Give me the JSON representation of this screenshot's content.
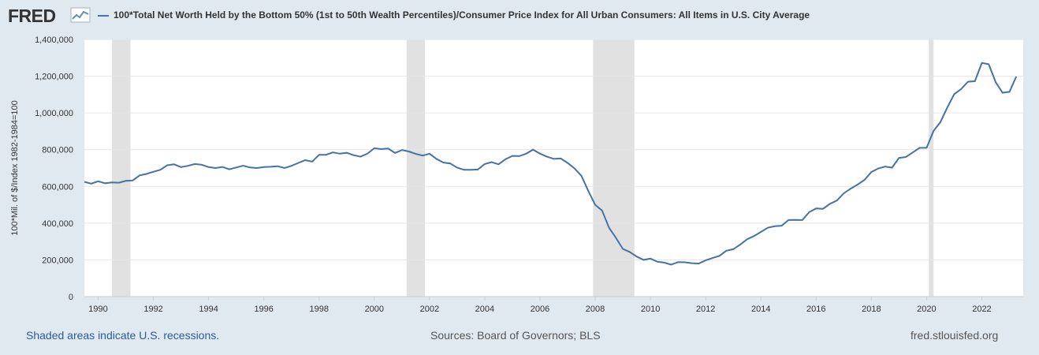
{
  "header": {
    "logo_text": "FRED",
    "logo_icon": "line-chart-icon",
    "series_title": "100*Total Net Worth Held by the Bottom 50% (1st to 50th Wealth Percentiles)/Consumer Price Index for All Urban Consumers: All Items in U.S. City Average"
  },
  "footer": {
    "recession_note": "Shaded areas indicate U.S. recessions.",
    "sources": "Sources: Board of Governors; BLS",
    "site": "fred.stlouisfed.org"
  },
  "colors": {
    "series": "#4572a7",
    "recession": "#e1e1e1",
    "background": "#e1e9f0",
    "plot": "#ffffff",
    "grid": "#e6e6e6"
  },
  "chart_data": {
    "type": "line",
    "title": "",
    "xlabel": "",
    "ylabel": "100*Mil. of $/Index 1982-1984=100",
    "xlim": [
      1989.5,
      2023.5
    ],
    "ylim": [
      0,
      1400000
    ],
    "y_ticks": [
      0,
      200000,
      400000,
      600000,
      800000,
      1000000,
      1200000,
      1400000
    ],
    "y_tick_labels": [
      "0",
      "200,000",
      "400,000",
      "600,000",
      "800,000",
      "1,000,000",
      "1,200,000",
      "1,400,000"
    ],
    "x_ticks": [
      1990,
      1992,
      1994,
      1996,
      1998,
      2000,
      2002,
      2004,
      2006,
      2008,
      2010,
      2012,
      2014,
      2016,
      2018,
      2020,
      2022
    ],
    "x_tick_labels": [
      "1990",
      "1992",
      "1994",
      "1996",
      "1998",
      "2000",
      "2002",
      "2004",
      "2006",
      "2008",
      "2010",
      "2012",
      "2014",
      "2016",
      "2018",
      "2020",
      "2022"
    ],
    "grid": true,
    "legend": "top-left",
    "recessions": [
      [
        1990.5,
        1991.17
      ],
      [
        2001.17,
        2001.83
      ],
      [
        2007.92,
        2009.42
      ],
      [
        2020.08,
        2020.25
      ]
    ],
    "series": [
      {
        "name": "100*Total Net Worth Held by the Bottom 50% (1st to 50th Wealth Percentiles)/Consumer Price Index for All Urban Consumers: All Items in U.S. City Average",
        "x": [
          1989.5,
          1989.75,
          1990,
          1990.25,
          1990.5,
          1990.75,
          1991,
          1991.25,
          1991.5,
          1991.75,
          1992,
          1992.25,
          1992.5,
          1992.75,
          1993,
          1993.25,
          1993.5,
          1993.75,
          1994,
          1994.25,
          1994.5,
          1994.75,
          1995,
          1995.25,
          1995.5,
          1995.75,
          1996,
          1996.25,
          1996.5,
          1996.75,
          1997,
          1997.25,
          1997.5,
          1997.75,
          1998,
          1998.25,
          1998.5,
          1998.75,
          1999,
          1999.25,
          1999.5,
          1999.75,
          2000,
          2000.25,
          2000.5,
          2000.75,
          2001,
          2001.25,
          2001.5,
          2001.75,
          2002,
          2002.25,
          2002.5,
          2002.75,
          2003,
          2003.25,
          2003.5,
          2003.75,
          2004,
          2004.25,
          2004.5,
          2004.75,
          2005,
          2005.25,
          2005.5,
          2005.75,
          2006,
          2006.25,
          2006.5,
          2006.75,
          2007,
          2007.25,
          2007.5,
          2007.75,
          2008,
          2008.25,
          2008.5,
          2008.75,
          2009,
          2009.25,
          2009.5,
          2009.75,
          2010,
          2010.25,
          2010.5,
          2010.75,
          2011,
          2011.25,
          2011.5,
          2011.75,
          2012,
          2012.25,
          2012.5,
          2012.75,
          2013,
          2013.25,
          2013.5,
          2013.75,
          2014,
          2014.25,
          2014.5,
          2014.75,
          2015,
          2015.25,
          2015.5,
          2015.75,
          2016,
          2016.25,
          2016.5,
          2016.75,
          2017,
          2017.25,
          2017.5,
          2017.75,
          2018,
          2018.25,
          2018.5,
          2018.75,
          2019,
          2019.25,
          2019.5,
          2019.75,
          2020,
          2020.25,
          2020.5,
          2020.75,
          2021,
          2021.25,
          2021.5,
          2021.75,
          2022,
          2022.25,
          2022.5,
          2022.75,
          2023,
          2023.25
        ],
        "values": [
          625000,
          615000,
          628000,
          617000,
          622000,
          620000,
          630000,
          632000,
          660000,
          668000,
          680000,
          690000,
          715000,
          720000,
          705000,
          712000,
          722000,
          718000,
          705000,
          700000,
          706000,
          693000,
          703000,
          713000,
          703000,
          700000,
          705000,
          707000,
          710000,
          700000,
          712000,
          728000,
          743000,
          735000,
          772000,
          772000,
          785000,
          778000,
          783000,
          770000,
          762000,
          778000,
          808000,
          803000,
          806000,
          782000,
          798000,
          790000,
          777000,
          768000,
          778000,
          750000,
          730000,
          725000,
          702000,
          690000,
          690000,
          692000,
          722000,
          732000,
          720000,
          748000,
          766000,
          765000,
          778000,
          800000,
          778000,
          762000,
          750000,
          752000,
          728000,
          698000,
          658000,
          575000,
          500000,
          468000,
          375000,
          320000,
          260000,
          243000,
          218000,
          200000,
          207000,
          190000,
          185000,
          174000,
          188000,
          187000,
          182000,
          180000,
          198000,
          210000,
          222000,
          250000,
          258000,
          283000,
          312000,
          330000,
          352000,
          375000,
          383000,
          386000,
          417000,
          418000,
          417000,
          460000,
          480000,
          478000,
          505000,
          523000,
          562000,
          588000,
          610000,
          635000,
          678000,
          698000,
          708000,
          702000,
          755000,
          760000,
          785000,
          810000,
          810000,
          902000,
          950000,
          1030000,
          1102000,
          1130000,
          1170000,
          1173000,
          1272000,
          1265000,
          1168000,
          1110000,
          1115000,
          1198000
        ]
      }
    ]
  }
}
